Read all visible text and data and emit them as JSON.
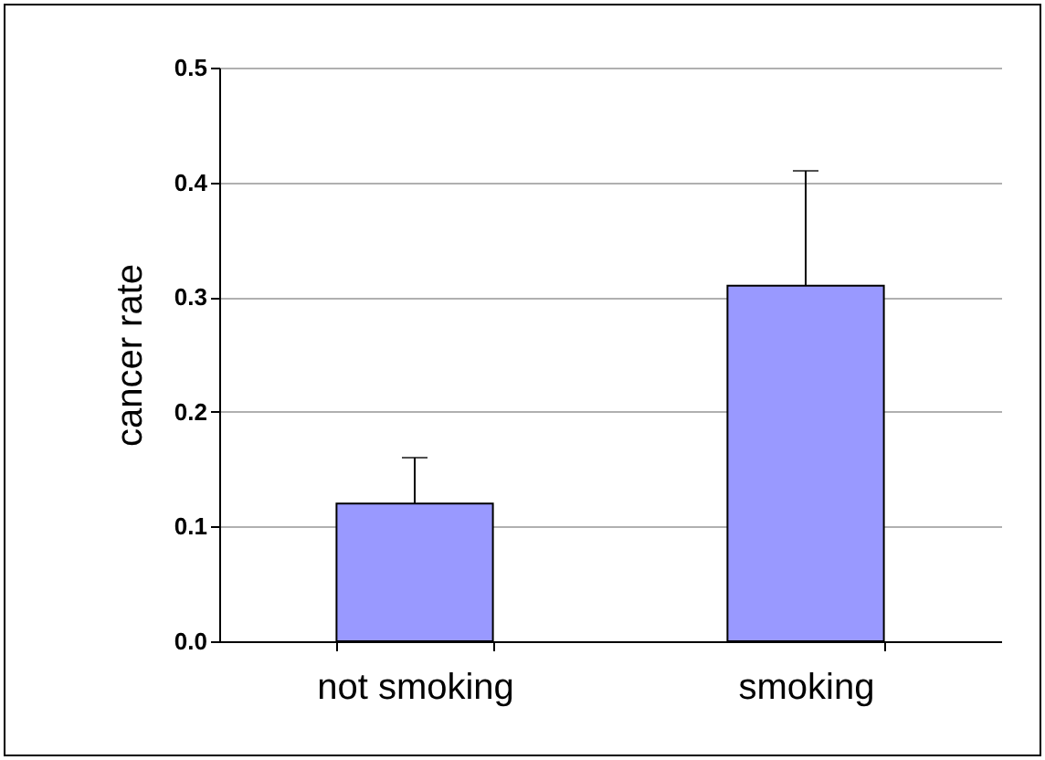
{
  "chart_data": {
    "type": "bar",
    "ylabel": "cancer rate",
    "categories": [
      "not smoking",
      "smoking"
    ],
    "values": [
      0.12,
      0.31
    ],
    "color": "#9999ff",
    "errors": [
      [
        0.12,
        0.16
      ],
      [
        0.31,
        0.41
      ]
    ],
    "ylim": [
      0,
      0.5
    ],
    "yticks": [
      {
        "value": 0,
        "label": "0.0"
      },
      {
        "value": 0.1,
        "label": "0.1"
      },
      {
        "value": 0.2,
        "label": "0.2"
      },
      {
        "value": 0.3,
        "label": "0.3"
      },
      {
        "value": 0.4,
        "label": "0.4"
      },
      {
        "value": 0.5,
        "label": "0.5"
      }
    ],
    "grid": "y"
  }
}
